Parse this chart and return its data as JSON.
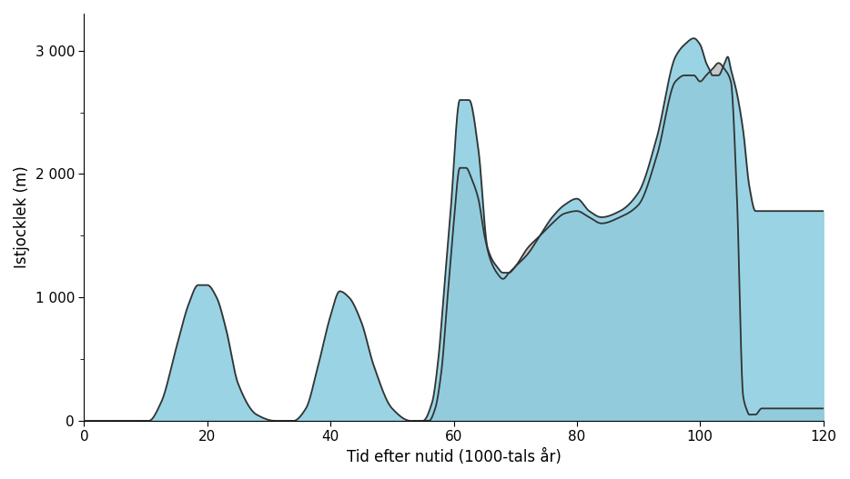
{
  "title": "",
  "xlabel": "Tid efter nutid (1000-tals år)",
  "ylabel": "Istjocklek (m)",
  "xlim": [
    0,
    120
  ],
  "ylim": [
    0,
    3300
  ],
  "xticks": [
    0,
    20,
    40,
    60,
    80,
    100,
    120
  ],
  "yticks": [
    0,
    1000,
    2000,
    3000
  ],
  "ytick_labels": [
    "0",
    "1 000",
    "2 000",
    "3 000"
  ],
  "blue_color": "#89CDE0",
  "blue_edge_color": "#333333",
  "grey_color": "#C8C8C8",
  "grey_edge_color": "#333333",
  "blue_x": [
    0,
    10.5,
    12.5,
    15,
    17,
    18.5,
    20,
    21.5,
    23,
    25,
    28,
    31,
    34,
    36,
    38,
    40,
    41.5,
    43,
    45,
    47,
    50,
    53,
    55,
    56.5,
    57.5,
    58.5,
    59.5,
    61,
    62.5,
    64,
    65.5,
    67,
    68,
    69,
    70,
    72,
    74,
    76,
    78,
    80,
    82,
    84,
    87,
    90,
    93,
    96,
    97.5,
    99,
    100,
    101,
    101.5,
    102,
    103,
    104,
    104.5,
    105,
    106,
    107,
    108,
    109,
    110,
    112,
    116,
    120
  ],
  "blue_y": [
    0,
    0,
    150,
    600,
    950,
    1100,
    1100,
    1000,
    750,
    300,
    50,
    0,
    0,
    100,
    450,
    850,
    1050,
    1000,
    800,
    450,
    100,
    0,
    0,
    150,
    500,
    1100,
    1700,
    2600,
    2600,
    2200,
    1400,
    1250,
    1200,
    1200,
    1250,
    1350,
    1500,
    1650,
    1750,
    1800,
    1700,
    1650,
    1700,
    1850,
    2300,
    2950,
    3050,
    3100,
    3050,
    2900,
    2850,
    2800,
    2800,
    2900,
    2950,
    2850,
    2650,
    2350,
    1900,
    1700,
    1700,
    1700,
    1700,
    1700
  ],
  "grey_x": [
    55,
    56,
    57,
    58,
    59,
    60,
    61,
    62,
    63,
    64,
    65,
    66,
    67,
    68,
    69,
    70,
    72,
    74,
    76,
    78,
    80,
    82,
    84,
    87,
    90,
    93,
    96,
    97.5,
    99,
    100,
    101,
    102,
    103,
    104,
    105,
    106,
    107,
    107.5,
    108,
    109,
    110,
    112,
    116,
    120
  ],
  "grey_y": [
    0,
    0,
    100,
    400,
    1000,
    1600,
    2050,
    2050,
    1950,
    1800,
    1500,
    1300,
    1200,
    1150,
    1200,
    1250,
    1400,
    1500,
    1600,
    1680,
    1700,
    1650,
    1600,
    1650,
    1750,
    2150,
    2750,
    2800,
    2800,
    2750,
    2800,
    2850,
    2900,
    2850,
    2750,
    1800,
    200,
    100,
    50,
    50,
    100,
    100,
    100,
    100
  ],
  "background_color": "#ffffff",
  "label_fontsize": 12,
  "tick_fontsize": 11
}
